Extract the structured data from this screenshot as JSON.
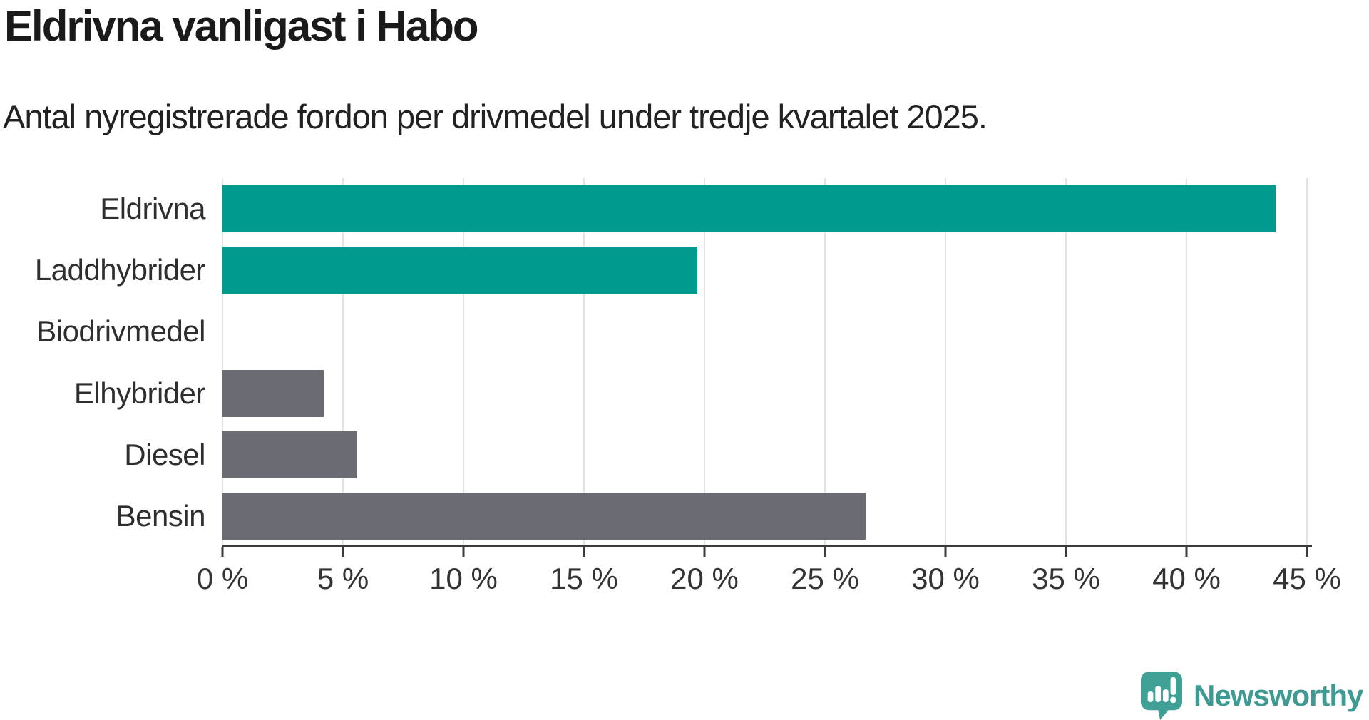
{
  "header": {
    "title": "Eldrivna vanligast i Habo",
    "subtitle": "Antal nyregistrerade fordon per drivmedel under tredje kvartalet 2025."
  },
  "chart_data": {
    "type": "bar",
    "orientation": "horizontal",
    "title": "Eldrivna vanligast i Habo",
    "subtitle": "Antal nyregistrerade fordon per drivmedel under tredje kvartalet 2025.",
    "categories": [
      "Eldrivna",
      "Laddhybrider",
      "Biodrivmedel",
      "Elhybrider",
      "Diesel",
      "Bensin"
    ],
    "values": [
      43.7,
      19.7,
      0,
      4.2,
      5.6,
      26.7
    ],
    "unit": "%",
    "xlim": [
      0,
      45
    ],
    "x_ticks": [
      "0 %",
      "5 %",
      "10 %",
      "15 %",
      "20 %",
      "25 %",
      "30 %",
      "35 %",
      "40 %",
      "45 %"
    ],
    "x_tick_values": [
      0,
      5,
      10,
      15,
      20,
      25,
      30,
      35,
      40,
      45
    ],
    "bar_colors": [
      "#009B8F",
      "#009B8F",
      "#009B8F",
      "#6B6B73",
      "#6B6B73",
      "#6B6B73"
    ],
    "grid": "vertical",
    "legend": "none",
    "ylabel": "",
    "xlabel": ""
  },
  "colors": {
    "teal": "#009B8F",
    "gray": "#6B6B73",
    "gridline": "#e3e3e3",
    "axis": "#3b3b3b",
    "brand_teal": "#3E9A92"
  },
  "footer": {
    "brand": "Newsworthy"
  }
}
